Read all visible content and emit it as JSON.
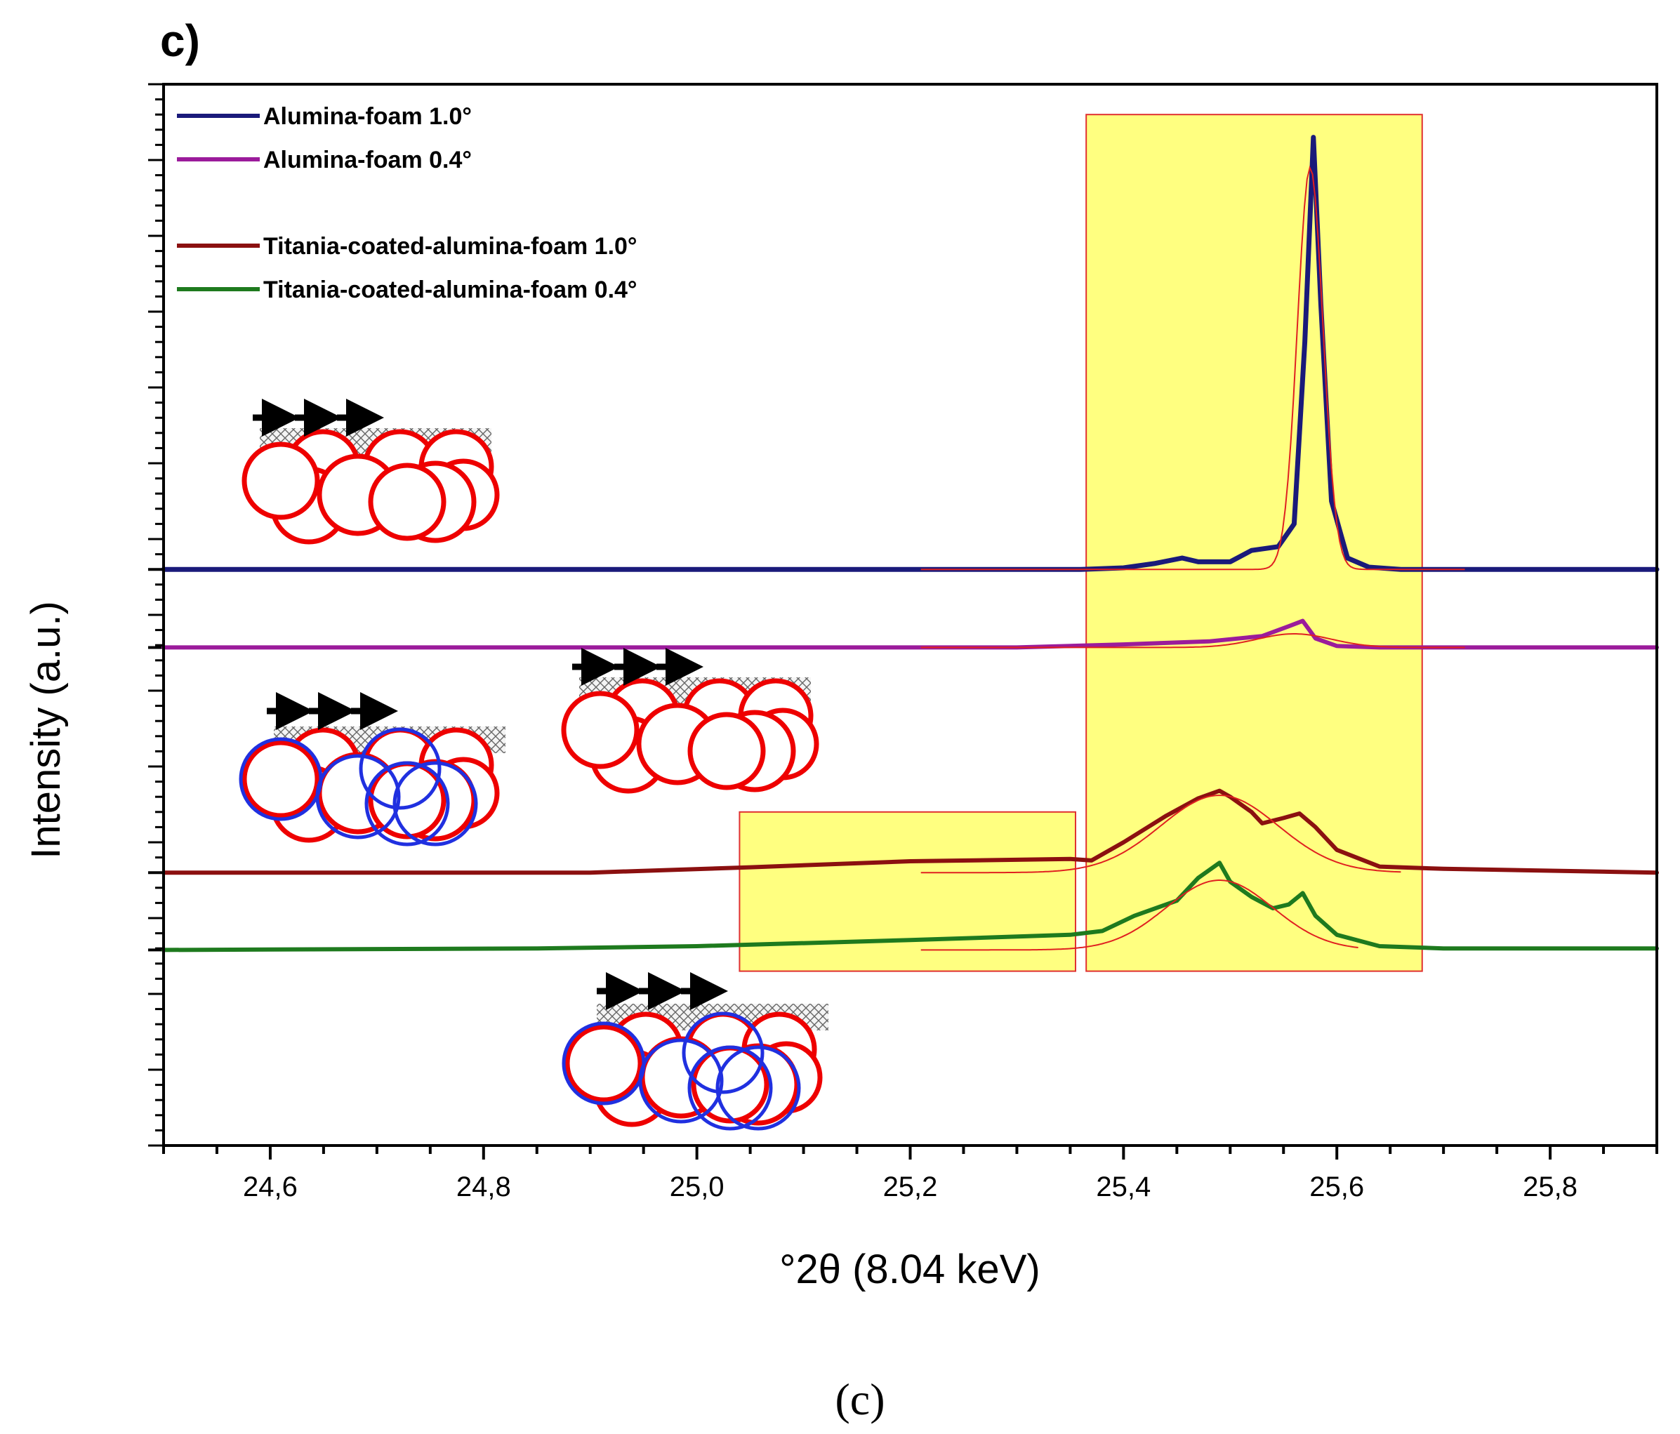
{
  "panel_label": "c)",
  "caption": "(c)",
  "chart_data": {
    "type": "line",
    "title": "",
    "xlabel": "°2θ (8.04 keV)",
    "ylabel": "Intensity (a.u.)",
    "xlim": [
      24.5,
      25.9
    ],
    "ylim": [
      0,
      14
    ],
    "grid": false,
    "legend_position": "top-left",
    "x_ticks": [
      24.6,
      24.8,
      25.0,
      25.2,
      25.4,
      25.6,
      25.8
    ],
    "x_tick_labels": [
      "24,6",
      "24,8",
      "25,0",
      "25,2",
      "25,4",
      "25,6",
      "25,8"
    ],
    "highlight_regions": [
      {
        "x0": 25.04,
        "x1": 25.355,
        "y0": 2.3,
        "y1": 4.4,
        "color": "#ffff80"
      },
      {
        "x0": 25.365,
        "x1": 25.68,
        "y0": 2.3,
        "y1": 13.6,
        "color": "#ffff80"
      }
    ],
    "series": [
      {
        "name": "Alumina-foam 1.0°",
        "color": "#1a1a7a",
        "baseline": 7.6,
        "points": [
          [
            24.5,
            0
          ],
          [
            25.36,
            0
          ],
          [
            25.4,
            0.02
          ],
          [
            25.43,
            0.08
          ],
          [
            25.455,
            0.15
          ],
          [
            25.47,
            0.1
          ],
          [
            25.5,
            0.1
          ],
          [
            25.52,
            0.25
          ],
          [
            25.545,
            0.3
          ],
          [
            25.56,
            0.6
          ],
          [
            25.57,
            3.0
          ],
          [
            25.578,
            5.7
          ],
          [
            25.585,
            3.5
          ],
          [
            25.595,
            0.9
          ],
          [
            25.61,
            0.15
          ],
          [
            25.63,
            0.03
          ],
          [
            25.66,
            0
          ],
          [
            25.9,
            0
          ]
        ]
      },
      {
        "name": "Alumina-foam 0.4°",
        "color": "#9b1b9b",
        "baseline": 6.57,
        "points": [
          [
            24.5,
            0
          ],
          [
            25.3,
            0
          ],
          [
            25.4,
            0.04
          ],
          [
            25.48,
            0.08
          ],
          [
            25.53,
            0.15
          ],
          [
            25.555,
            0.28
          ],
          [
            25.568,
            0.35
          ],
          [
            25.58,
            0.12
          ],
          [
            25.6,
            0.02
          ],
          [
            25.64,
            0
          ],
          [
            25.9,
            0
          ]
        ]
      },
      {
        "name": "Titania-coated-alumina-foam 1.0°",
        "color": "#8b1010",
        "baseline": 3.6,
        "points": [
          [
            24.5,
            0
          ],
          [
            24.9,
            0
          ],
          [
            25.05,
            0.07
          ],
          [
            25.2,
            0.15
          ],
          [
            25.35,
            0.18
          ],
          [
            25.37,
            0.16
          ],
          [
            25.4,
            0.4
          ],
          [
            25.44,
            0.75
          ],
          [
            25.47,
            0.98
          ],
          [
            25.49,
            1.08
          ],
          [
            25.5,
            1.0
          ],
          [
            25.52,
            0.8
          ],
          [
            25.53,
            0.65
          ],
          [
            25.55,
            0.72
          ],
          [
            25.565,
            0.78
          ],
          [
            25.58,
            0.6
          ],
          [
            25.6,
            0.3
          ],
          [
            25.64,
            0.08
          ],
          [
            25.7,
            0.05
          ],
          [
            25.9,
            0
          ]
        ]
      },
      {
        "name": "Titania-coated-alumina-foam 0.4°",
        "color": "#1e7a1e",
        "baseline": 2.58,
        "points": [
          [
            24.5,
            0
          ],
          [
            24.85,
            0.02
          ],
          [
            25.0,
            0.05
          ],
          [
            25.2,
            0.13
          ],
          [
            25.35,
            0.2
          ],
          [
            25.38,
            0.25
          ],
          [
            25.41,
            0.45
          ],
          [
            25.45,
            0.65
          ],
          [
            25.47,
            0.95
          ],
          [
            25.49,
            1.15
          ],
          [
            25.5,
            0.9
          ],
          [
            25.52,
            0.7
          ],
          [
            25.54,
            0.55
          ],
          [
            25.555,
            0.6
          ],
          [
            25.568,
            0.75
          ],
          [
            25.58,
            0.45
          ],
          [
            25.6,
            0.2
          ],
          [
            25.64,
            0.05
          ],
          [
            25.7,
            0.02
          ],
          [
            25.9,
            0.02
          ]
        ]
      }
    ],
    "fits": [
      {
        "series": 0,
        "color": "#e02020",
        "peak_x": 25.575,
        "amp": 5.3,
        "width": 0.012,
        "x0": 25.21,
        "x1": 25.72
      },
      {
        "series": 1,
        "color": "#e02020",
        "peak_x": 25.56,
        "amp": 0.18,
        "width": 0.035,
        "x0": 25.21,
        "x1": 25.72
      },
      {
        "series": 2,
        "color": "#e02020",
        "peak_x": 25.49,
        "amp": 1.02,
        "width": 0.055,
        "x0": 25.21,
        "x1": 25.66
      },
      {
        "series": 3,
        "color": "#e02020",
        "peak_x": 25.49,
        "amp": 0.92,
        "width": 0.05,
        "x0": 25.21,
        "x1": 25.62
      }
    ]
  },
  "diagrams": [
    {
      "name": "alumina-foam-1deg",
      "coated": false
    },
    {
      "name": "alumina-foam-0.4deg",
      "coated": false
    },
    {
      "name": "titania-coated-1deg",
      "coated": true
    },
    {
      "name": "titania-coated-0.4deg",
      "coated": true
    }
  ]
}
